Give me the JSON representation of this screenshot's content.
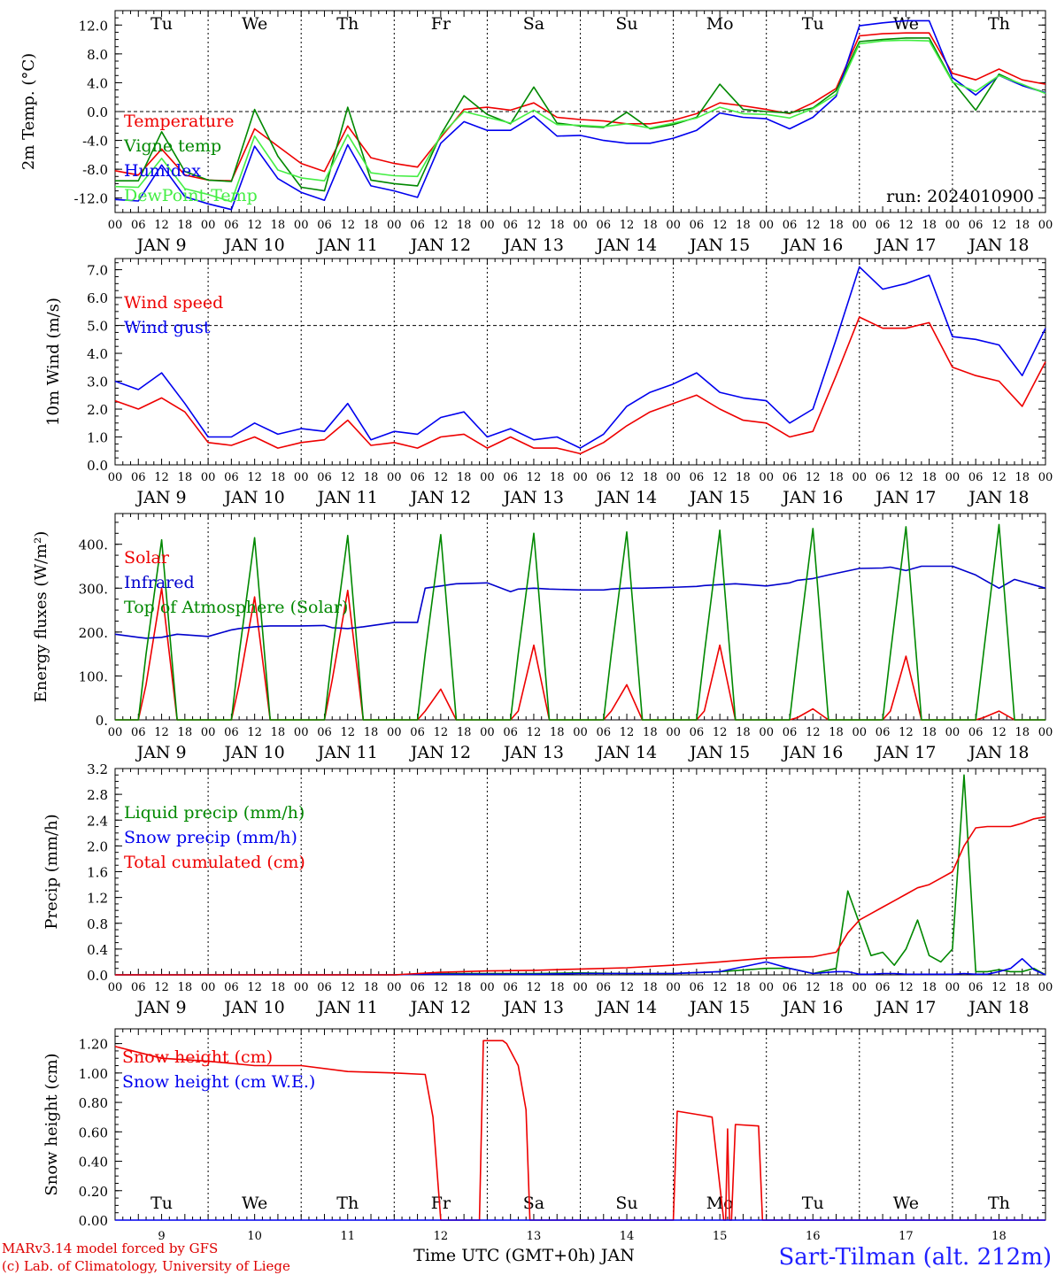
{
  "footer": {
    "model_line": "MARv3.14 model forced by GFS",
    "credit_line": "(c) Lab. of Climatology, University of Liege",
    "time_axis_label": "Time UTC (GMT+0h) JAN",
    "station": "Sart-Tilman (alt. 212m)"
  },
  "days": {
    "weekdays": [
      "Tu",
      "We",
      "Th",
      "Fr",
      "Sa",
      "Su",
      "Mo",
      "Tu",
      "We",
      "Th"
    ],
    "weekday_colors": [
      "#000000",
      "#000000",
      "#000000",
      "#000000",
      "#e00000",
      "#e00000",
      "#000000",
      "#000000",
      "#000000",
      "#000000"
    ],
    "dates": [
      "JAN  9",
      "JAN 10",
      "JAN 11",
      "JAN 12",
      "JAN 13",
      "JAN 14",
      "JAN 15",
      "JAN 16",
      "JAN 17",
      "JAN 18"
    ],
    "day_numbers": [
      "9",
      "10",
      "11",
      "12",
      "13",
      "14",
      "15",
      "16",
      "17",
      "18"
    ],
    "hour_ticks": [
      "00",
      "06",
      "12",
      "18"
    ],
    "final_hour": "00"
  },
  "chart_data": [
    {
      "type": "line",
      "ylabel": "2m Temp. (°C)",
      "ylim": [
        -14,
        14
      ],
      "yticks": [
        "12.0",
        "8.0",
        "4.0",
        "0.0",
        "-4.0",
        "-8.0",
        "-12.0"
      ],
      "ytick_values": [
        12,
        8,
        4,
        0,
        -4,
        -8,
        -12
      ],
      "hline": 0,
      "annotation": "run: 2024010900",
      "x_hours": [
        0,
        6,
        12,
        18,
        24,
        30,
        36,
        42,
        48,
        54,
        60,
        66,
        72,
        78,
        84,
        90,
        96,
        102,
        108,
        114,
        120,
        126,
        132,
        138,
        144,
        150,
        156,
        162,
        168,
        174,
        180,
        186,
        192,
        198,
        204,
        210,
        216,
        222,
        228,
        234,
        240
      ],
      "series": [
        {
          "name": "Temperature",
          "color": "#ee0000",
          "values": [
            -8.2,
            -8.8,
            -5.2,
            -8.8,
            -9.5,
            -9.6,
            -2.4,
            -4.8,
            -7.2,
            -8.3,
            -2.0,
            -6.4,
            -7.2,
            -7.7,
            -3.6,
            0.3,
            0.6,
            0.2,
            1.2,
            -0.8,
            -1.1,
            -1.3,
            -1.7,
            -1.7,
            -1.2,
            -0.3,
            1.2,
            0.8,
            0.3,
            -0.3,
            1.2,
            3.2,
            10.5,
            10.8,
            10.9,
            10.9,
            5.3,
            4.4,
            5.9,
            4.4,
            3.8
          ]
        },
        {
          "name": "Vigne temp",
          "color": "#008800",
          "values": [
            -9.6,
            -9.6,
            -2.8,
            -8.3,
            -9.5,
            -9.7,
            0.3,
            -6.2,
            -10.5,
            -11.0,
            0.6,
            -9.5,
            -10.0,
            -10.3,
            -3.2,
            2.2,
            -0.4,
            -1.7,
            3.4,
            -1.6,
            -2.0,
            -2.2,
            -0.1,
            -2.4,
            -1.8,
            -0.8,
            3.8,
            0.3,
            0.0,
            -0.2,
            0.5,
            2.9,
            9.7,
            10.0,
            10.2,
            10.2,
            4.2,
            0.2,
            5.2,
            3.7,
            2.6
          ]
        },
        {
          "name": "Humidex",
          "color": "#0000ee",
          "values": [
            -12.2,
            -12.4,
            -7.4,
            -11.8,
            -12.8,
            -13.6,
            -4.8,
            -9.3,
            -11.2,
            -12.3,
            -4.6,
            -10.3,
            -11.0,
            -11.9,
            -4.4,
            -1.4,
            -2.6,
            -2.6,
            -0.6,
            -3.4,
            -3.3,
            -4.0,
            -4.4,
            -4.4,
            -3.7,
            -2.6,
            -0.2,
            -0.8,
            -1.0,
            -2.4,
            -0.8,
            2.1,
            11.9,
            12.3,
            12.6,
            12.6,
            4.7,
            2.3,
            5.0,
            3.6,
            2.6
          ]
        },
        {
          "name": "DewPoint Temp",
          "color": "#44ee44",
          "values": [
            -10.4,
            -10.5,
            -6.5,
            -10.7,
            -11.5,
            -12.5,
            -3.4,
            -8.1,
            -9.2,
            -9.6,
            -3.2,
            -8.5,
            -8.9,
            -9.0,
            -3.3,
            0.0,
            -0.8,
            -1.6,
            0.2,
            -1.8,
            -1.9,
            -2.1,
            -1.7,
            -2.3,
            -1.6,
            -0.9,
            0.6,
            -0.3,
            -0.4,
            -0.9,
            0.4,
            2.4,
            9.4,
            9.8,
            9.9,
            9.8,
            4.1,
            2.8,
            5.0,
            3.8,
            2.5
          ]
        }
      ]
    },
    {
      "type": "line",
      "ylabel": "10m Wind (m/s)",
      "ylim": [
        0,
        7.4
      ],
      "yticks": [
        "7.0",
        "6.0",
        "5.0",
        "4.0",
        "3.0",
        "2.0",
        "1.0",
        "0.0"
      ],
      "ytick_values": [
        7,
        6,
        5,
        4,
        3,
        2,
        1,
        0
      ],
      "hline": 5,
      "x_hours": [
        0,
        6,
        12,
        18,
        24,
        30,
        36,
        42,
        48,
        54,
        60,
        66,
        72,
        78,
        84,
        90,
        96,
        102,
        108,
        114,
        120,
        126,
        132,
        138,
        144,
        150,
        156,
        162,
        168,
        174,
        180,
        186,
        192,
        198,
        204,
        210,
        216,
        222,
        228,
        234,
        240
      ],
      "series": [
        {
          "name": "Wind speed",
          "color": "#ee0000",
          "values": [
            2.3,
            2.0,
            2.4,
            1.9,
            0.8,
            0.7,
            1.0,
            0.6,
            0.8,
            0.9,
            1.6,
            0.7,
            0.8,
            0.6,
            1.0,
            1.1,
            0.6,
            1.0,
            0.6,
            0.6,
            0.4,
            0.8,
            1.4,
            1.9,
            2.2,
            2.5,
            2.0,
            1.6,
            1.5,
            1.0,
            1.2,
            3.2,
            5.3,
            4.9,
            4.9,
            5.1,
            3.5,
            3.2,
            3.0,
            2.1,
            3.7
          ]
        },
        {
          "name": "Wind gust",
          "color": "#0000ee",
          "values": [
            3.0,
            2.7,
            3.3,
            2.2,
            1.0,
            1.0,
            1.5,
            1.1,
            1.3,
            1.2,
            2.2,
            0.9,
            1.2,
            1.1,
            1.7,
            1.9,
            1.0,
            1.3,
            0.9,
            1.0,
            0.6,
            1.1,
            2.1,
            2.6,
            2.9,
            3.3,
            2.6,
            2.4,
            2.3,
            1.5,
            2.0,
            4.5,
            7.1,
            6.3,
            6.5,
            6.8,
            4.6,
            4.5,
            4.3,
            3.2,
            4.9
          ]
        }
      ]
    },
    {
      "type": "line",
      "ylabel": "Energy fluxes (W/m²)",
      "ylim": [
        0,
        470
      ],
      "yticks": [
        "400.",
        "300.",
        "200.",
        "100.",
        "0."
      ],
      "ytick_values": [
        400,
        300,
        200,
        100,
        0
      ],
      "x_hours": [
        0,
        6,
        8,
        12,
        16,
        24,
        30,
        32,
        36,
        40,
        48,
        54,
        56,
        60,
        64,
        72,
        78,
        80,
        84,
        88,
        96,
        102,
        104,
        108,
        112,
        120,
        126,
        128,
        132,
        136,
        144,
        150,
        152,
        156,
        160,
        168,
        174,
        176,
        180,
        184,
        192,
        198,
        200,
        204,
        208,
        216,
        222,
        224,
        228,
        232,
        240
      ],
      "series": [
        {
          "name": "Solar",
          "color": "#ee0000",
          "values": [
            0,
            0,
            80,
            300,
            0,
            0,
            0,
            80,
            280,
            0,
            0,
            0,
            90,
            295,
            0,
            0,
            0,
            20,
            70,
            0,
            0,
            0,
            20,
            170,
            0,
            0,
            0,
            20,
            80,
            0,
            0,
            0,
            20,
            170,
            0,
            0,
            0,
            5,
            25,
            0,
            0,
            0,
            20,
            145,
            0,
            0,
            0,
            5,
            20,
            0,
            0
          ]
        },
        {
          "name": "Infrared",
          "color": "#0000cc",
          "values": [
            195,
            188,
            186,
            188,
            195,
            190,
            205,
            208,
            212,
            214,
            214,
            215,
            210,
            208,
            212,
            222,
            222,
            300,
            305,
            310,
            312,
            292,
            298,
            300,
            298,
            296,
            296,
            298,
            300,
            300,
            302,
            304,
            306,
            308,
            310,
            305,
            312,
            318,
            322,
            330,
            345,
            346,
            348,
            340,
            350,
            350,
            330,
            320,
            300,
            320,
            300
          ]
        },
        {
          "name": "Top of Atmosphere (Solar)",
          "color": "#008800",
          "values": [
            0,
            0,
            150,
            410,
            0,
            0,
            0,
            150,
            415,
            0,
            0,
            0,
            150,
            420,
            0,
            0,
            0,
            150,
            422,
            0,
            0,
            0,
            150,
            425,
            0,
            0,
            0,
            150,
            428,
            0,
            0,
            0,
            150,
            432,
            0,
            0,
            0,
            150,
            436,
            0,
            0,
            0,
            150,
            440,
            0,
            0,
            0,
            150,
            445,
            0,
            0
          ]
        }
      ]
    },
    {
      "type": "line",
      "ylabel": "Precip (mm/h)",
      "ylim": [
        0,
        3.2
      ],
      "yticks": [
        "3.2",
        "2.8",
        "2.4",
        "2.0",
        "1.6",
        "1.2",
        "0.8",
        "0.4",
        "0.0"
      ],
      "ytick_values": [
        3.2,
        2.8,
        2.4,
        2.0,
        1.6,
        1.2,
        0.8,
        0.4,
        0.0
      ],
      "x_hours": [
        0,
        24,
        48,
        72,
        78,
        84,
        96,
        108,
        120,
        132,
        144,
        156,
        168,
        174,
        180,
        186,
        189,
        192,
        195,
        198,
        201,
        204,
        207,
        210,
        213,
        216,
        219,
        222,
        225,
        228,
        231,
        234,
        237,
        240
      ],
      "series": [
        {
          "name": "Liquid precip (mm/h)",
          "color": "#008800",
          "values": [
            0,
            0,
            0,
            0,
            0.01,
            0.02,
            0.02,
            0.02,
            0.03,
            0.02,
            0.02,
            0.05,
            0.1,
            0.1,
            0.02,
            0.1,
            1.3,
            0.8,
            0.3,
            0.35,
            0.15,
            0.4,
            0.85,
            0.3,
            0.2,
            0.4,
            3.1,
            0.05,
            0.05,
            0.08,
            0.05,
            0.05,
            0.1,
            0
          ]
        },
        {
          "name": "Snow precip (mm/h)",
          "color": "#0000ee",
          "values": [
            0,
            0,
            0,
            0,
            0.01,
            0.01,
            0.01,
            0.01,
            0.02,
            0.02,
            0.02,
            0.05,
            0.2,
            0.1,
            0.02,
            0.05,
            0.05,
            0.01,
            0.01,
            0.02,
            0.02,
            0.01,
            0.01,
            0.01,
            0.01,
            0.01,
            0.02,
            0.01,
            0.01,
            0.05,
            0.1,
            0.25,
            0.08,
            0
          ]
        },
        {
          "name": "Total cumulated (cm)",
          "color": "#ee0000",
          "values": [
            0,
            0,
            0,
            0,
            0.02,
            0.04,
            0.06,
            0.07,
            0.09,
            0.11,
            0.15,
            0.2,
            0.26,
            0.27,
            0.28,
            0.35,
            0.65,
            0.85,
            0.95,
            1.05,
            1.15,
            1.25,
            1.35,
            1.4,
            1.5,
            1.6,
            2.0,
            2.28,
            2.3,
            2.3,
            2.3,
            2.35,
            2.42,
            2.45
          ]
        }
      ]
    },
    {
      "type": "line",
      "ylabel": "Snow height (cm)",
      "ylim": [
        0,
        1.3
      ],
      "yticks": [
        "1.20",
        "1.00",
        "0.80",
        "0.60",
        "0.40",
        "0.20",
        "0.00"
      ],
      "ytick_values": [
        1.2,
        1.0,
        0.8,
        0.6,
        0.4,
        0.2,
        0.0
      ],
      "x_hours": [
        0,
        12,
        24,
        36,
        48,
        60,
        72,
        80,
        82,
        84,
        94,
        95,
        100,
        101,
        104,
        106,
        107,
        144,
        145,
        152,
        154,
        157,
        157.5,
        158,
        158.5,
        159,
        160,
        166,
        167,
        168,
        240
      ],
      "series": [
        {
          "name": "Snow height (cm)",
          "color": "#ee0000",
          "values": [
            1.18,
            1.1,
            1.08,
            1.05,
            1.05,
            1.01,
            1.0,
            0.99,
            0.7,
            0,
            0,
            1.22,
            1.22,
            1.2,
            1.05,
            0.75,
            0,
            0,
            0.74,
            0.71,
            0.7,
            0,
            0,
            0.62,
            0,
            0,
            0.65,
            0.64,
            0,
            0,
            0
          ]
        },
        {
          "name": "Snow height (cm W.E.)",
          "color": "#0000ee",
          "values": [
            0,
            0,
            0,
            0,
            0,
            0,
            0,
            0,
            0,
            0,
            0,
            0,
            0,
            0,
            0,
            0,
            0,
            0,
            0,
            0,
            0,
            0,
            0,
            0,
            0,
            0,
            0,
            0,
            0,
            0,
            0
          ]
        }
      ]
    }
  ]
}
